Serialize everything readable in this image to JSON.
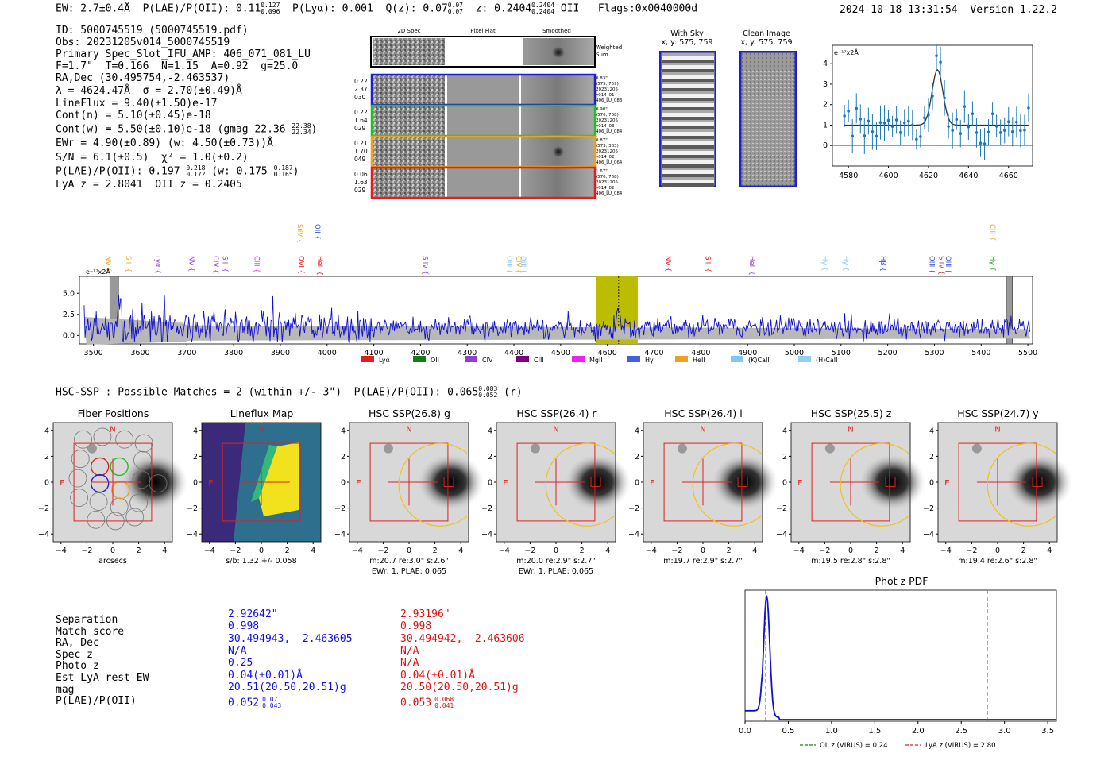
{
  "header": {
    "ew": "EW: 2.7±0.4Å",
    "plae_label": "P(LAE)/P(OII): 0.11",
    "plae_hi": "0.127",
    "plae_lo": "0.096",
    "plya": "P(Lyα): 0.001",
    "qz_label": "Q(z): 0.07",
    "qz_hi": "0.07",
    "qz_lo": "0.07",
    "z_label": "z: 0.2404",
    "z_hi": "0.2404",
    "z_lo": "0.2404",
    "z_line": "OII",
    "flags": "Flags:0x0040000d",
    "timestamp": "2024-10-18 13:31:54",
    "version": "Version 1.22.2"
  },
  "summary": {
    "id": "ID: 5000745519 (5000745519.pdf)",
    "obs": "Obs: 20231205v014_5000745519",
    "primary": "Primary Spec_Slot_IFU_AMP: 406_071_081_LU",
    "fwhm": "F=1.7\"  T=0.166  N=1.15  A=0.92  g=25.0",
    "radec": "RA,Dec (30.495754,-2.463537)",
    "lambda": "λ = 4624.47Å  σ = 2.70(±0.49)Å",
    "lineflux": "LineFlux = 9.40(±1.50)e-17",
    "contn": "Cont(n) = 5.10(±0.45)e-18",
    "contw": "Cont(w) = 5.50(±0.10)e-18 (gmag 22.36",
    "contw_hi": "22.38",
    "contw_lo": "22.34",
    "contw_end": ")",
    "ewr": "EWr = 4.90(±0.89) (w: 4.50(±0.73))Å",
    "sn": "S/N = 6.1(±0.5)  χ² = 1.0(±0.2)",
    "plae": "P(LAE)/P(OII): 0.197",
    "plae_hi": "0.218",
    "plae_lo": "0.172",
    "plae_w": "(w: 0.175",
    "plae_w_hi": "0.187",
    "plae_w_lo": "0.165",
    "plae_end": ")",
    "lyaz": "LyA z = 2.8041  OII z = 0.2405"
  },
  "cutouts": {
    "col_titles": [
      "2D Spec",
      "Pixel Flat",
      "Smoothed"
    ],
    "weighted_sum": [
      "Weighted",
      "Sum"
    ],
    "rows": [
      {
        "left": [
          "0.22",
          "2.37",
          "030"
        ],
        "right": [
          "0.83\"",
          "(575, 759)",
          "20231205",
          "v014_01",
          "406_LU_083"
        ],
        "color": "#1f1fd0"
      },
      {
        "left": [
          "0.22",
          "1.64",
          "029"
        ],
        "right": [
          "0.90\"",
          "(576, 768)",
          "20231205",
          "v014_03",
          "406_LU_084"
        ],
        "color": "#22c022"
      },
      {
        "left": [
          "0.21",
          "1.70",
          "049"
        ],
        "right": [
          "0.87\"",
          "(573, 383)",
          "20231205",
          "v014_02",
          "406_LU_064"
        ],
        "color": "#f0a020"
      },
      {
        "left": [
          "0.06",
          "1.63",
          "029"
        ],
        "right": [
          "1.67\"",
          "(576, 768)",
          "20231205",
          "v014_02",
          "406_LU_084"
        ],
        "color": "#e02020"
      }
    ],
    "with_sky_title": [
      "With Sky",
      "x, y: 575, 759"
    ],
    "clean_title": [
      "Clean Image",
      "x, y: 575, 759"
    ]
  },
  "zoom_spec": {
    "unit": "e⁻¹⁷x2Å",
    "yticks": [
      "0",
      "1",
      "2",
      "3",
      "4"
    ],
    "xticks": [
      "4580",
      "4600",
      "4620",
      "4640",
      "4660"
    ]
  },
  "full_spec": {
    "unit": "e⁻¹⁷x2Å",
    "yticks": [
      "0.0",
      "2.5",
      "5.0"
    ],
    "xticks": [
      "3500",
      "3600",
      "3700",
      "3800",
      "3900",
      "4000",
      "4100",
      "4200",
      "4300",
      "4400",
      "4500",
      "4600",
      "4700",
      "4800",
      "4900",
      "5000",
      "5100",
      "5200",
      "5300",
      "5400",
      "5500"
    ],
    "line_labels": [
      {
        "t": "NV",
        "c": "#f0a020",
        "w": 3522
      },
      {
        "t": "SiII",
        "c": "#f0a020",
        "w": 3565
      },
      {
        "t": "Lyα",
        "c": "#9040d0",
        "w": 3628
      },
      {
        "t": "NV",
        "c": "#9040d0",
        "w": 3700
      },
      {
        "t": "CIV",
        "c": "#9040d0",
        "w": 3752
      },
      {
        "t": "SiII",
        "c": "#9040d0",
        "w": 3772
      },
      {
        "t": "CIII",
        "c": "#e020e0",
        "w": 3840
      },
      {
        "t": "OVI",
        "c": "#e02020",
        "w": 3935
      },
      {
        "t": "HeII",
        "c": "#e02020",
        "w": 3975
      },
      {
        "t": "SiIV",
        "c": "#f0a020",
        "w": 3932
      },
      {
        "t": "OII",
        "c": "#3050e0",
        "w": 3970
      },
      {
        "t": "SiIV",
        "c": "#9040d0",
        "w": 4200
      },
      {
        "t": "OIII",
        "c": "#80c8f0",
        "w": 4380
      },
      {
        "t": "CIV",
        "c": "#f0a020",
        "w": 4400
      },
      {
        "t": "OIII",
        "c": "#80c8f0",
        "w": 4410
      },
      {
        "t": "NV",
        "c": "#e02020",
        "w": 4720
      },
      {
        "t": "SiII",
        "c": "#e02020",
        "w": 4805
      },
      {
        "t": "HeII",
        "c": "#9040d0",
        "w": 4900
      },
      {
        "t": "Hγ",
        "c": "#80c8f0",
        "w": 5055
      },
      {
        "t": "Hγ",
        "c": "#80c8f0",
        "w": 5100
      },
      {
        "t": "Hβ",
        "c": "#3050e0",
        "w": 5180
      },
      {
        "t": "OIII",
        "c": "#3050e0",
        "w": 5285
      },
      {
        "t": "SiIV",
        "c": "#e02020",
        "w": 5305
      },
      {
        "t": "OIII",
        "c": "#3050e0",
        "w": 5320
      },
      {
        "t": "CIII",
        "c": "#f0a020",
        "w": 5415
      },
      {
        "t": "Hγ",
        "c": "#22a022",
        "w": 5415
      }
    ],
    "legend": [
      {
        "t": "Lyα",
        "c": "#e02020"
      },
      {
        "t": "OII",
        "c": "#108010"
      },
      {
        "t": "CIV",
        "c": "#9040d0"
      },
      {
        "t": "CIII",
        "c": "#800080"
      },
      {
        "t": "MgII",
        "c": "#f020f0"
      },
      {
        "t": "Hγ",
        "c": "#4060e0"
      },
      {
        "t": "HeII",
        "c": "#f0a020"
      },
      {
        "t": "(K)CaII",
        "c": "#80c8f0"
      },
      {
        "t": "(H)CaII",
        "c": "#90d0f0"
      }
    ]
  },
  "hsc": {
    "heading": "HSC-SSP : Possible Matches = 2 (within +/- 3\")  P(LAE)/P(OII): 0.065",
    "heading_hi": "0.083",
    "heading_lo": "0.052",
    "heading_end": "(r)",
    "panels": [
      {
        "title": "Fiber Positions",
        "xlabel": "arcsecs",
        "sub": ""
      },
      {
        "title": "Lineflux Map",
        "xlabel": "s/b: 1.32 +/- 0.058",
        "sub": ""
      },
      {
        "title": "HSC SSP(26.8) g",
        "xlabel": "m:20.7  re:3.0\"  s:2.6\"",
        "sub": "EWr: 1. PLAE: 0.065"
      },
      {
        "title": "HSC SSP(26.4) r",
        "xlabel": "m:20.0  re:2.9\"  s:2.7\"",
        "sub": "EWr: 1. PLAE: 0.065"
      },
      {
        "title": "HSC SSP(26.4) i",
        "xlabel": "m:19.7  re:2.9\"  s:2.7\"",
        "sub": ""
      },
      {
        "title": "HSC SSP(25.5) z",
        "xlabel": "m:19.5  re:2.8\"  s:2.8\"",
        "sub": ""
      },
      {
        "title": "HSC SSP(24.7) y",
        "xlabel": "m:19.4  re:2.6\"  s:2.8\"",
        "sub": ""
      }
    ],
    "yticks": [
      "4",
      "2",
      "0",
      "−2",
      "−4"
    ],
    "xticks": [
      "−4",
      "−2",
      "0",
      "2",
      "4"
    ],
    "north": "N",
    "east": "E"
  },
  "matches": {
    "labels": [
      "Separation",
      "Match score",
      "RA, Dec",
      "Spec z",
      "Photo z",
      "Est LyA rest-EW",
      "mag",
      "P(LAE)/P(OII)"
    ],
    "blue": [
      "2.92642\"",
      "0.998",
      "30.494943, -2.463605",
      "N/A",
      "0.25",
      "0.04(±0.01)Å",
      "20.51(20.50,20.51)g",
      "0.052"
    ],
    "blue_hi": "0.07",
    "blue_lo": "0.043",
    "red": [
      "2.93196\"",
      "0.998",
      "30.494942, -2.463606",
      "N/A",
      "N/A",
      "0.04(±0.01)Å",
      "20.50(20.50,20.51)g",
      "0.053"
    ],
    "red_hi": "0.068",
    "red_lo": "0.041"
  },
  "photz": {
    "title": "Phot z PDF",
    "xticks": [
      "0.0",
      "0.5",
      "1.0",
      "1.5",
      "2.0",
      "2.5",
      "3.0",
      "3.5"
    ],
    "legend_oii": "OII z (VIRUS) = 0.24",
    "legend_lya": "LyA z (VIRUS) = 2.80",
    "oii_z": 0.24,
    "lya_z": 2.8
  }
}
